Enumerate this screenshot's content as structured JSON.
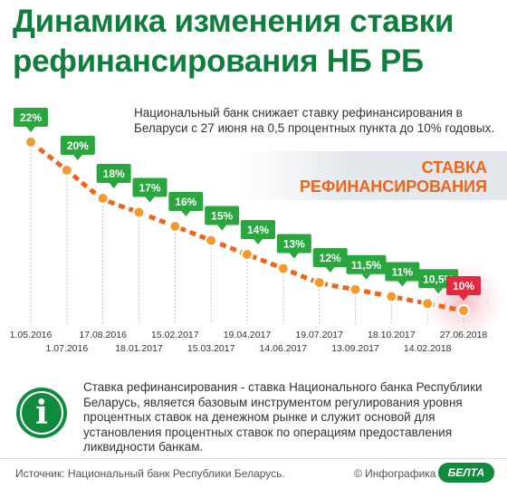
{
  "title": "Динамика изменения ставки рефинансирования НБ РБ",
  "subtitle": "Национальный банк снижает ставку рефинансирования в Беларуси с 27 июня на 0,5 процентных пункта до 10% годовых.",
  "banner": "СТАВКА РЕФИНАНСИРОВАНИЯ",
  "info_text": "Ставка рефинансирования - ставка Национального банка Республики Беларусь, является базовым инструментом регулирования уровня процентных ставок на денежном рынке и служит основой для установления процентных ставок по операциям предоставления ликвидности банкам.",
  "source": "Источник: Национальный банк Республики Беларусь.",
  "credit": "© Инфографика",
  "logo": "БЕЛТА",
  "colors": {
    "title": "#0f7e3c",
    "label_green": "#2aa63f",
    "label_red": "#e6283e",
    "line": "#ef6418",
    "dot": "#f59a2c"
  },
  "icons": {
    "info": "info-icon"
  },
  "chart_data": {
    "type": "line",
    "title": "",
    "xlabel": "",
    "ylabel": "",
    "ylim": [
      10,
      22
    ],
    "grid": false,
    "x": [
      "1.05.2016",
      "1.07.2016",
      "17.08.2016",
      "18.01.2017",
      "15.02.2017",
      "15.03.2017",
      "19.04.2017",
      "14.06.2017",
      "19.07.2017",
      "13.09.2017",
      "18.10.2017",
      "14.02.2018",
      "27.06.2018"
    ],
    "values": [
      22,
      20,
      18,
      17,
      16,
      15,
      14,
      13,
      12,
      11.5,
      11,
      10.5,
      10
    ],
    "data_labels": [
      "22%",
      "20%",
      "18%",
      "17%",
      "16%",
      "15%",
      "14%",
      "13%",
      "12%",
      "11,5%",
      "11%",
      "10,5%",
      "10%"
    ]
  }
}
